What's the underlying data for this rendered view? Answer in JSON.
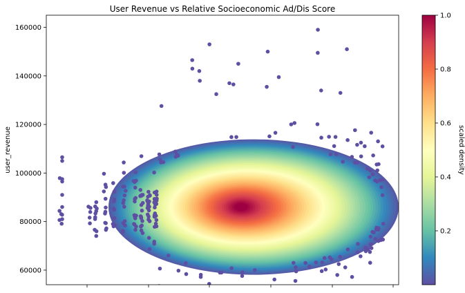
{
  "chart_data": {
    "type": "scatter",
    "title": "User Revenue vs Relative Socioeconomic Ad/Dis Score",
    "xlabel": "",
    "ylabel": "user_revenue",
    "x_tick_labels": [],
    "ylim": [
      54000,
      165000
    ],
    "yticks": [
      60000,
      80000,
      100000,
      120000,
      140000,
      160000
    ],
    "y_tick_labels": [
      "60000",
      "80000",
      "100000",
      "120000",
      "140000",
      "160000"
    ],
    "grid": false,
    "colormap": "Spectral_r",
    "colorbar": {
      "label": "scaled density",
      "range": [
        0.0,
        1.0
      ],
      "ticks": [
        0.2,
        0.4,
        0.6,
        0.8,
        1.0
      ],
      "tick_labels": [
        "0.2",
        "0.4",
        "0.6",
        "0.8",
        "1.0"
      ]
    },
    "density_center_y": 86000,
    "outlier_points_y": [
      106500,
      105000,
      97500,
      96500,
      91000,
      86000,
      81000,
      159000,
      153000,
      151000,
      149500,
      150000,
      146500,
      145000,
      143000,
      142000,
      139500,
      138000,
      137000,
      136500,
      135500,
      134000,
      133000,
      132500,
      65000,
      63000,
      62500,
      61500,
      59000
    ],
    "point_color_low": "#5e4fa2",
    "point_color_high": "#9e0142"
  }
}
